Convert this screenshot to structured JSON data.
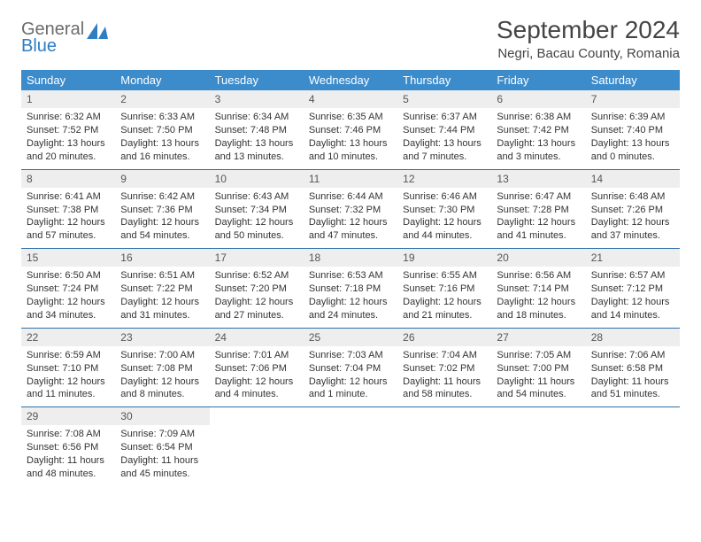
{
  "brand": {
    "name_line1": "General",
    "name_line2": "Blue",
    "logo_color": "#2f7dc2",
    "text_gray": "#6b6b6b"
  },
  "title": "September 2024",
  "location": "Negri, Bacau County, Romania",
  "colors": {
    "header_bg": "#3c8ccc",
    "header_text": "#ffffff",
    "daynum_bg": "#eeeeee",
    "week_border": "#2f6fa8",
    "body_text": "#333333",
    "page_bg": "#ffffff"
  },
  "typography": {
    "title_fontsize": 28,
    "location_fontsize": 15,
    "dayheader_fontsize": 13,
    "cell_fontsize": 11,
    "daynum_fontsize": 12
  },
  "day_names": [
    "Sunday",
    "Monday",
    "Tuesday",
    "Wednesday",
    "Thursday",
    "Friday",
    "Saturday"
  ],
  "weeks": [
    [
      {
        "n": "1",
        "sr": "Sunrise: 6:32 AM",
        "ss": "Sunset: 7:52 PM",
        "dl": "Daylight: 13 hours and 20 minutes."
      },
      {
        "n": "2",
        "sr": "Sunrise: 6:33 AM",
        "ss": "Sunset: 7:50 PM",
        "dl": "Daylight: 13 hours and 16 minutes."
      },
      {
        "n": "3",
        "sr": "Sunrise: 6:34 AM",
        "ss": "Sunset: 7:48 PM",
        "dl": "Daylight: 13 hours and 13 minutes."
      },
      {
        "n": "4",
        "sr": "Sunrise: 6:35 AM",
        "ss": "Sunset: 7:46 PM",
        "dl": "Daylight: 13 hours and 10 minutes."
      },
      {
        "n": "5",
        "sr": "Sunrise: 6:37 AM",
        "ss": "Sunset: 7:44 PM",
        "dl": "Daylight: 13 hours and 7 minutes."
      },
      {
        "n": "6",
        "sr": "Sunrise: 6:38 AM",
        "ss": "Sunset: 7:42 PM",
        "dl": "Daylight: 13 hours and 3 minutes."
      },
      {
        "n": "7",
        "sr": "Sunrise: 6:39 AM",
        "ss": "Sunset: 7:40 PM",
        "dl": "Daylight: 13 hours and 0 minutes."
      }
    ],
    [
      {
        "n": "8",
        "sr": "Sunrise: 6:41 AM",
        "ss": "Sunset: 7:38 PM",
        "dl": "Daylight: 12 hours and 57 minutes."
      },
      {
        "n": "9",
        "sr": "Sunrise: 6:42 AM",
        "ss": "Sunset: 7:36 PM",
        "dl": "Daylight: 12 hours and 54 minutes."
      },
      {
        "n": "10",
        "sr": "Sunrise: 6:43 AM",
        "ss": "Sunset: 7:34 PM",
        "dl": "Daylight: 12 hours and 50 minutes."
      },
      {
        "n": "11",
        "sr": "Sunrise: 6:44 AM",
        "ss": "Sunset: 7:32 PM",
        "dl": "Daylight: 12 hours and 47 minutes."
      },
      {
        "n": "12",
        "sr": "Sunrise: 6:46 AM",
        "ss": "Sunset: 7:30 PM",
        "dl": "Daylight: 12 hours and 44 minutes."
      },
      {
        "n": "13",
        "sr": "Sunrise: 6:47 AM",
        "ss": "Sunset: 7:28 PM",
        "dl": "Daylight: 12 hours and 41 minutes."
      },
      {
        "n": "14",
        "sr": "Sunrise: 6:48 AM",
        "ss": "Sunset: 7:26 PM",
        "dl": "Daylight: 12 hours and 37 minutes."
      }
    ],
    [
      {
        "n": "15",
        "sr": "Sunrise: 6:50 AM",
        "ss": "Sunset: 7:24 PM",
        "dl": "Daylight: 12 hours and 34 minutes."
      },
      {
        "n": "16",
        "sr": "Sunrise: 6:51 AM",
        "ss": "Sunset: 7:22 PM",
        "dl": "Daylight: 12 hours and 31 minutes."
      },
      {
        "n": "17",
        "sr": "Sunrise: 6:52 AM",
        "ss": "Sunset: 7:20 PM",
        "dl": "Daylight: 12 hours and 27 minutes."
      },
      {
        "n": "18",
        "sr": "Sunrise: 6:53 AM",
        "ss": "Sunset: 7:18 PM",
        "dl": "Daylight: 12 hours and 24 minutes."
      },
      {
        "n": "19",
        "sr": "Sunrise: 6:55 AM",
        "ss": "Sunset: 7:16 PM",
        "dl": "Daylight: 12 hours and 21 minutes."
      },
      {
        "n": "20",
        "sr": "Sunrise: 6:56 AM",
        "ss": "Sunset: 7:14 PM",
        "dl": "Daylight: 12 hours and 18 minutes."
      },
      {
        "n": "21",
        "sr": "Sunrise: 6:57 AM",
        "ss": "Sunset: 7:12 PM",
        "dl": "Daylight: 12 hours and 14 minutes."
      }
    ],
    [
      {
        "n": "22",
        "sr": "Sunrise: 6:59 AM",
        "ss": "Sunset: 7:10 PM",
        "dl": "Daylight: 12 hours and 11 minutes."
      },
      {
        "n": "23",
        "sr": "Sunrise: 7:00 AM",
        "ss": "Sunset: 7:08 PM",
        "dl": "Daylight: 12 hours and 8 minutes."
      },
      {
        "n": "24",
        "sr": "Sunrise: 7:01 AM",
        "ss": "Sunset: 7:06 PM",
        "dl": "Daylight: 12 hours and 4 minutes."
      },
      {
        "n": "25",
        "sr": "Sunrise: 7:03 AM",
        "ss": "Sunset: 7:04 PM",
        "dl": "Daylight: 12 hours and 1 minute."
      },
      {
        "n": "26",
        "sr": "Sunrise: 7:04 AM",
        "ss": "Sunset: 7:02 PM",
        "dl": "Daylight: 11 hours and 58 minutes."
      },
      {
        "n": "27",
        "sr": "Sunrise: 7:05 AM",
        "ss": "Sunset: 7:00 PM",
        "dl": "Daylight: 11 hours and 54 minutes."
      },
      {
        "n": "28",
        "sr": "Sunrise: 7:06 AM",
        "ss": "Sunset: 6:58 PM",
        "dl": "Daylight: 11 hours and 51 minutes."
      }
    ],
    [
      {
        "n": "29",
        "sr": "Sunrise: 7:08 AM",
        "ss": "Sunset: 6:56 PM",
        "dl": "Daylight: 11 hours and 48 minutes."
      },
      {
        "n": "30",
        "sr": "Sunrise: 7:09 AM",
        "ss": "Sunset: 6:54 PM",
        "dl": "Daylight: 11 hours and 45 minutes."
      },
      null,
      null,
      null,
      null,
      null
    ]
  ]
}
